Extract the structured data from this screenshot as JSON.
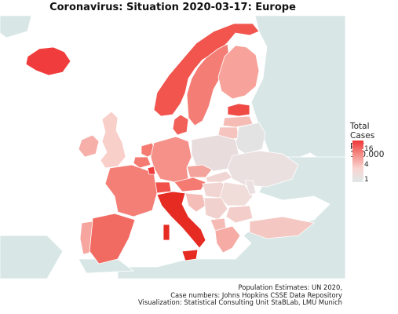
{
  "title": "Coronavirus: Situation 2020-03-17: Europe",
  "legend": {
    "title_line1": "Total Cases",
    "title_line2": "per 100.000",
    "ticks": [
      {
        "label": "16"
      },
      {
        "label": "4"
      },
      {
        "label": "1"
      }
    ],
    "scale": "log",
    "colors": {
      "low": "#dfe8e8",
      "mid": "#f7a8a2",
      "high": "#f03636"
    }
  },
  "colors": {
    "sea": "#ffffff",
    "land_no_data": "#d8e6e6",
    "border": "#ffffff"
  },
  "caption": {
    "line1": "Population Estimates: UN 2020,",
    "line2": "Case numbers: Johns Hopkins CSSE Data Repository",
    "line3": "Visualization: Statistical Consulting Unit StaBLab, LMU Munich"
  }
}
